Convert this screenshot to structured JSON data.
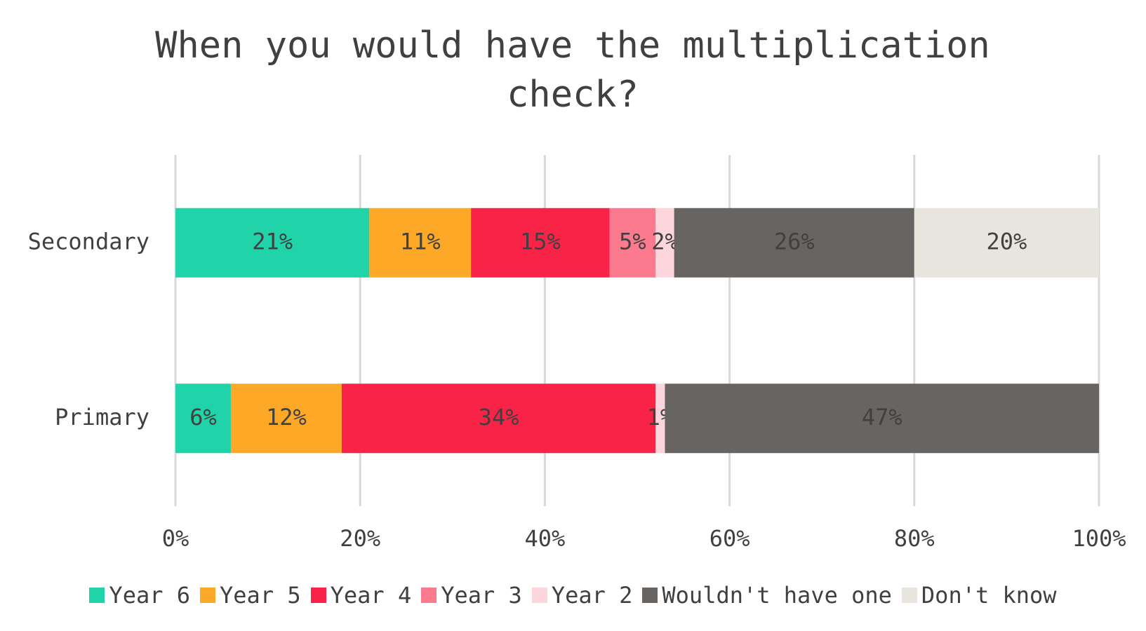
{
  "chart_data": {
    "type": "stacked-bar-horizontal",
    "title": "When you would have the multiplication check?",
    "categories": [
      "Secondary",
      "Primary"
    ],
    "series": [
      {
        "name": "Year 6",
        "color": "#20d3a8",
        "values": [
          21,
          6
        ],
        "value_labels": [
          "21%",
          "6%"
        ]
      },
      {
        "name": "Year 5",
        "color": "#fda826",
        "values": [
          11,
          12
        ],
        "value_labels": [
          "11%",
          "12%"
        ]
      },
      {
        "name": "Year 4",
        "color": "#f92348",
        "values": [
          15,
          34
        ],
        "value_labels": [
          "15%",
          "34%"
        ]
      },
      {
        "name": "Year 3",
        "color": "#fc7a8e",
        "values": [
          5,
          null
        ],
        "value_labels": [
          "5%",
          null
        ]
      },
      {
        "name": "Year 2",
        "color": "#fdd5dc",
        "values": [
          2,
          1
        ],
        "value_labels": [
          "2%",
          "1%"
        ]
      },
      {
        "name": "Wouldn't have one",
        "color": "#686462",
        "values": [
          26,
          47
        ],
        "value_labels": [
          "26%",
          "47%"
        ]
      },
      {
        "name": "Don't know",
        "color": "#e8e4de",
        "values": [
          20,
          null
        ],
        "value_labels": [
          "20%",
          null
        ]
      }
    ],
    "xlim": [
      0,
      100
    ],
    "xticks": [
      {
        "value": 0,
        "label": "0%"
      },
      {
        "value": 20,
        "label": "20%"
      },
      {
        "value": 40,
        "label": "40%"
      },
      {
        "value": 60,
        "label": "60%"
      },
      {
        "value": 80,
        "label": "80%"
      },
      {
        "value": 100,
        "label": "100%"
      }
    ],
    "grid": true,
    "legend": "bottom"
  }
}
